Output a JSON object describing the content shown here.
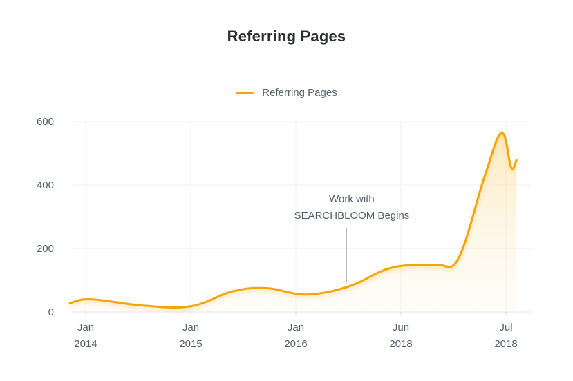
{
  "chart_data": {
    "type": "area",
    "title": "Referring Pages",
    "legend": [
      {
        "name": "Referring Pages",
        "color": "#f5a30a"
      }
    ],
    "legend_position": "top-center",
    "xlabel": "",
    "ylabel": "",
    "ylim": [
      0,
      600
    ],
    "y_ticks": [
      "600",
      "400",
      "200",
      "0"
    ],
    "x_ticks": [
      {
        "line1": "Jan",
        "line2": "2014"
      },
      {
        "line1": "Jan",
        "line2": "2015"
      },
      {
        "line1": "Jan",
        "line2": "2016"
      },
      {
        "line1": "Jun",
        "line2": "2018"
      },
      {
        "line1": "Jul",
        "line2": "2018"
      }
    ],
    "grid": true,
    "series": [
      {
        "name": "Referring Pages",
        "color": "#f5a30a",
        "points": [
          {
            "t": -0.15,
            "v": 28
          },
          {
            "t": 0.05,
            "v": 40
          },
          {
            "t": 0.55,
            "v": 20
          },
          {
            "t": 1.0,
            "v": 18
          },
          {
            "t": 1.4,
            "v": 65
          },
          {
            "t": 1.72,
            "v": 75
          },
          {
            "t": 2.1,
            "v": 55
          },
          {
            "t": 2.5,
            "v": 80
          },
          {
            "t": 2.85,
            "v": 133
          },
          {
            "t": 3.1,
            "v": 148
          },
          {
            "t": 3.35,
            "v": 148
          },
          {
            "t": 3.55,
            "v": 170
          },
          {
            "t": 3.8,
            "v": 430
          },
          {
            "t": 3.96,
            "v": 565
          },
          {
            "t": 4.05,
            "v": 455
          },
          {
            "t": 4.1,
            "v": 478
          }
        ]
      }
    ],
    "annotations": [
      {
        "line1": "Work with",
        "line2": "SEARCHBLOOM Begins",
        "t": 2.48,
        "v": 100
      }
    ]
  }
}
